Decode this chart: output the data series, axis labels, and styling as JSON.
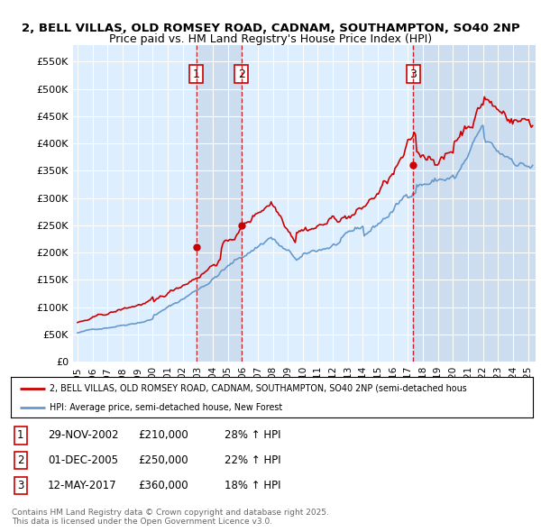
{
  "title_line1": "2, BELL VILLAS, OLD ROMSEY ROAD, CADNAM, SOUTHAMPTON, SO40 2NP",
  "title_line2": "Price paid vs. HM Land Registry's House Price Index (HPI)",
  "ylabel_ticks": [
    "£0",
    "£50K",
    "£100K",
    "£150K",
    "£200K",
    "£250K",
    "£300K",
    "£350K",
    "£400K",
    "£450K",
    "£500K",
    "£550K"
  ],
  "ytick_values": [
    0,
    50000,
    100000,
    150000,
    200000,
    250000,
    300000,
    350000,
    400000,
    450000,
    500000,
    550000
  ],
  "ylim": [
    0,
    580000
  ],
  "xlim_start": 1994.7,
  "xlim_end": 2025.5,
  "xtick_years": [
    1995,
    1996,
    1997,
    1998,
    1999,
    2000,
    2001,
    2002,
    2003,
    2004,
    2005,
    2006,
    2007,
    2008,
    2009,
    2010,
    2011,
    2012,
    2013,
    2014,
    2015,
    2016,
    2017,
    2018,
    2019,
    2020,
    2021,
    2022,
    2023,
    2024,
    2025
  ],
  "sale_dates": [
    2002.91,
    2005.92,
    2017.36
  ],
  "sale_prices": [
    210000,
    250000,
    360000
  ],
  "sale_labels": [
    "1",
    "2",
    "3"
  ],
  "legend_line1": "2, BELL VILLAS, OLD ROMSEY ROAD, CADNAM, SOUTHAMPTON, SO40 2NP (semi-detached hous",
  "legend_line2": "HPI: Average price, semi-detached house, New Forest",
  "table_data": [
    [
      "1",
      "29-NOV-2002",
      "£210,000",
      "28% ↑ HPI"
    ],
    [
      "2",
      "01-DEC-2005",
      "£250,000",
      "22% ↑ HPI"
    ],
    [
      "3",
      "12-MAY-2017",
      "£360,000",
      "18% ↑ HPI"
    ]
  ],
  "footnote": "Contains HM Land Registry data © Crown copyright and database right 2025.\nThis data is licensed under the Open Government Licence v3.0.",
  "red_color": "#cc0000",
  "blue_color": "#6699cc",
  "bg_chart": "#ddeeff",
  "bg_figure": "#ffffff",
  "shade_color": "#ccddf0"
}
